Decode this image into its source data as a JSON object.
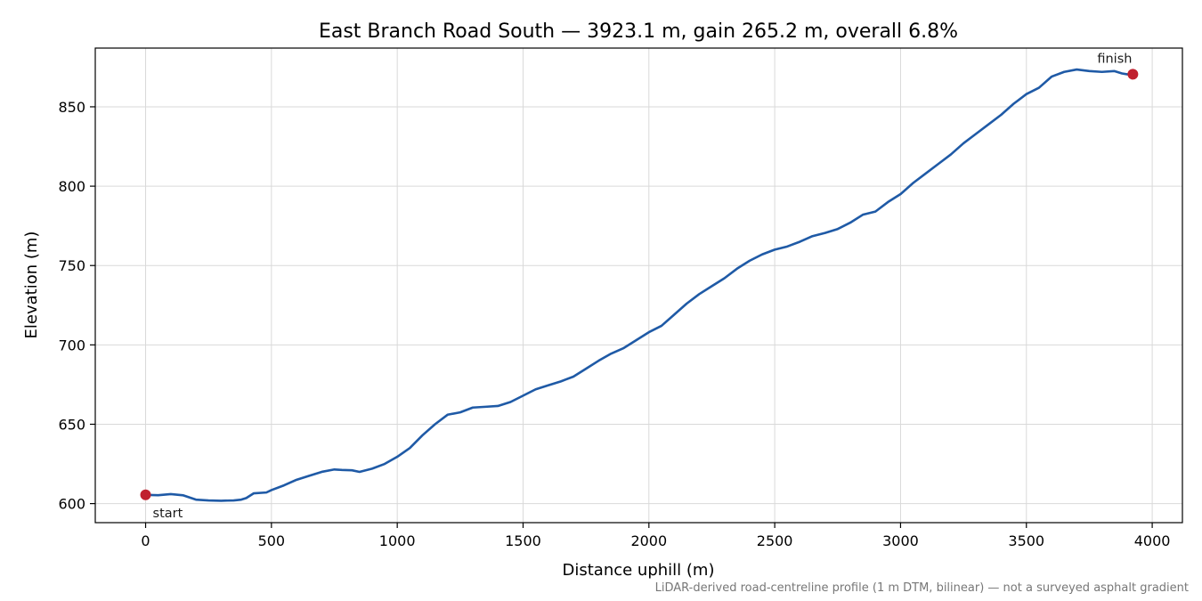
{
  "chart_data": {
    "type": "line",
    "title": "East Branch Road South — 3923.1 m, gain 265.2 m, overall 6.8%",
    "xlabel": "Distance uphill (m)",
    "ylabel": "Elevation (m)",
    "xlim": [
      -200,
      4120
    ],
    "ylim": [
      588,
      887
    ],
    "xticks": [
      0,
      500,
      1000,
      1500,
      2000,
      2500,
      3000,
      3500,
      4000
    ],
    "yticks": [
      600,
      650,
      700,
      750,
      800,
      850
    ],
    "grid": true,
    "line_color": "#1f5aa6",
    "marker_color": "#c0202e",
    "series": [
      {
        "x": [
          0,
          50,
          100,
          150,
          200,
          250,
          300,
          350,
          380,
          400,
          430,
          480,
          500,
          550,
          600,
          650,
          700,
          750,
          780,
          820,
          850,
          900,
          950,
          1000,
          1050,
          1100,
          1150,
          1200,
          1250,
          1300,
          1350,
          1400,
          1450,
          1500,
          1550,
          1600,
          1650,
          1700,
          1750,
          1800,
          1850,
          1900,
          1950,
          2000,
          2050,
          2100,
          2150,
          2200,
          2250,
          2300,
          2350,
          2400,
          2450,
          2500,
          2550,
          2600,
          2650,
          2700,
          2750,
          2800,
          2850,
          2900,
          2950,
          3000,
          3050,
          3100,
          3150,
          3200,
          3250,
          3300,
          3350,
          3400,
          3450,
          3500,
          3550,
          3600,
          3650,
          3700,
          3750,
          3800,
          3850,
          3880,
          3900,
          3923.1
        ],
        "y": [
          605.5,
          605.3,
          606,
          605.2,
          602.5,
          602,
          601.8,
          602,
          602.5,
          603.5,
          606.5,
          607,
          608.5,
          611.5,
          615,
          617.5,
          620,
          621.5,
          621.2,
          621,
          620,
          622,
          625,
          629.5,
          635,
          643,
          650,
          656,
          657.5,
          660.5,
          661,
          661.5,
          664,
          668,
          672,
          674.5,
          677,
          680,
          685,
          690,
          694.5,
          698,
          703,
          708,
          712,
          719,
          726,
          732,
          737,
          742,
          748,
          753,
          757,
          760,
          762,
          765,
          768.5,
          770.5,
          773,
          777,
          782,
          784,
          790,
          795,
          802,
          808,
          814,
          820,
          827,
          833,
          839,
          845,
          852,
          858,
          862,
          869,
          872,
          873.5,
          872.5,
          872,
          872.5,
          871,
          870.5,
          870.5
        ]
      }
    ],
    "markers": [
      {
        "label": "start",
        "x": 0,
        "y": 605.5
      },
      {
        "label": "finish",
        "x": 3923.1,
        "y": 870.5
      }
    ]
  },
  "footnote": "LiDAR-derived road-centreline profile (1 m DTM, bilinear) — not a surveyed asphalt gradient"
}
